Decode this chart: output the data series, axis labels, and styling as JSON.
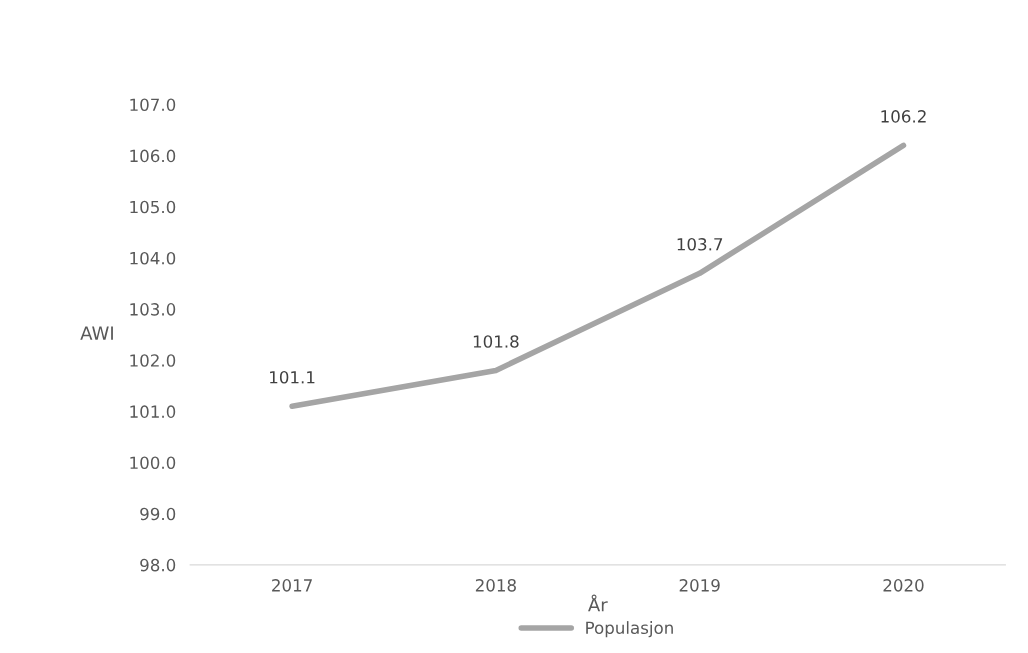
{
  "chart_data": {
    "type": "line",
    "xlabel": "År",
    "ylabel": "AWI",
    "categories": [
      "2017",
      "2018",
      "2019",
      "2020"
    ],
    "series": [
      {
        "name": "Populasjon",
        "color": "#a5a5a5",
        "values": [
          101.1,
          101.8,
          103.7,
          106.2
        ]
      }
    ],
    "ylim": [
      98,
      107
    ],
    "yticks": [
      {
        "value": 98,
        "label": "98.0"
      },
      {
        "value": 99,
        "label": "99.0"
      },
      {
        "value": 100,
        "label": "100.0"
      },
      {
        "value": 101,
        "label": "101.0"
      },
      {
        "value": 102,
        "label": "102.0"
      },
      {
        "value": 103,
        "label": "103.0"
      },
      {
        "value": 104,
        "label": "104.0"
      },
      {
        "value": 105,
        "label": "105.0"
      },
      {
        "value": 106,
        "label": "106.0"
      },
      {
        "value": 107,
        "label": "107.0"
      }
    ],
    "data_labels": true,
    "grid": false,
    "legend": "bottom",
    "marker": "none",
    "line_style": "solid"
  }
}
